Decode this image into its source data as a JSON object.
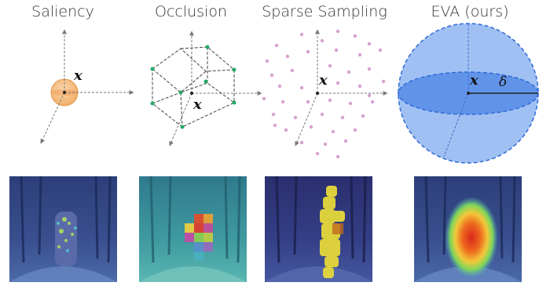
{
  "titles": {
    "saliency": "Saliency",
    "occlusion": "Occlusion",
    "sparse_sampling": "Sparse Sampling",
    "eva": "EVA (ours)"
  },
  "labels": {
    "x": "x",
    "delta": "δ"
  },
  "colors": {
    "saliency_ball": "#f5c08a",
    "occlusion_vertex": "#22aa66",
    "sample_points": "#d7a0d0",
    "eva_sphere": "#8fb5f2",
    "eva_disk": "#5a8ee8"
  },
  "images": [
    {
      "name": "saliency-heatmap"
    },
    {
      "name": "occlusion-heatmap"
    },
    {
      "name": "sparse-sampling-heatmap"
    },
    {
      "name": "eva-heatmap"
    }
  ]
}
